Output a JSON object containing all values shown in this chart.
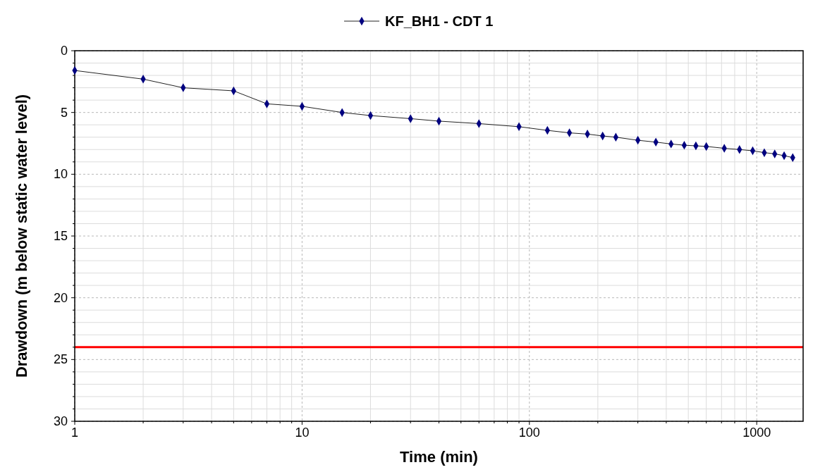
{
  "chart_data": {
    "type": "line",
    "xlabel": "Time (min)",
    "ylabel": "Drawdown (m below static water level)",
    "log": "x",
    "grid": true,
    "legend": "top",
    "marker": "diamond",
    "line_style": "solid",
    "xlim": [
      1,
      1600
    ],
    "xticks": [
      1,
      {
        "value": 2,
        "label": null
      },
      {
        "value": 3,
        "label": null
      },
      {
        "value": 4,
        "label": null
      },
      {
        "value": 5,
        "label": null
      },
      {
        "value": 6,
        "label": null
      },
      {
        "value": 7,
        "label": null
      },
      {
        "value": 8,
        "label": null
      },
      {
        "value": 9,
        "label": null
      },
      10,
      {
        "value": 20,
        "label": null
      },
      {
        "value": 30,
        "label": null
      },
      {
        "value": 40,
        "label": null
      },
      {
        "value": 50,
        "label": null
      },
      {
        "value": 60,
        "label": null
      },
      {
        "value": 70,
        "label": null
      },
      {
        "value": 80,
        "label": null
      },
      {
        "value": 90,
        "label": null
      },
      100,
      {
        "value": 200,
        "label": null
      },
      {
        "value": 300,
        "label": null
      },
      {
        "value": 400,
        "label": null
      },
      {
        "value": 500,
        "label": null
      },
      {
        "value": 600,
        "label": null
      },
      {
        "value": 700,
        "label": null
      },
      {
        "value": 800,
        "label": null
      },
      {
        "value": 900,
        "label": null
      },
      1000
    ],
    "ylim": [
      30,
      0
    ],
    "yticks": [
      0,
      {
        "value": 1,
        "label": null
      },
      {
        "value": 2,
        "label": null
      },
      {
        "value": 3,
        "label": null
      },
      {
        "value": 4,
        "label": null
      },
      5,
      {
        "value": 6,
        "label": null
      },
      {
        "value": 7,
        "label": null
      },
      {
        "value": 8,
        "label": null
      },
      {
        "value": 9,
        "label": null
      },
      10,
      {
        "value": 11,
        "label": null
      },
      {
        "value": 12,
        "label": null
      },
      {
        "value": 13,
        "label": null
      },
      {
        "value": 14,
        "label": null
      },
      15,
      {
        "value": 16,
        "label": null
      },
      {
        "value": 17,
        "label": null
      },
      {
        "value": 18,
        "label": null
      },
      {
        "value": 19,
        "label": null
      },
      20,
      {
        "value": 21,
        "label": null
      },
      {
        "value": 22,
        "label": null
      },
      {
        "value": 23,
        "label": null
      },
      {
        "value": 24,
        "label": null
      },
      25,
      {
        "value": 26,
        "label": null
      },
      {
        "value": 27,
        "label": null
      },
      {
        "value": 28,
        "label": null
      },
      {
        "value": 29,
        "label": null
      },
      30
    ],
    "x": [
      1,
      2,
      3,
      5,
      7,
      10,
      15,
      20,
      30,
      40,
      60,
      90,
      120,
      150,
      180,
      210,
      240,
      300,
      360,
      420,
      480,
      540,
      600,
      720,
      840,
      960,
      1080,
      1200,
      1320,
      1440
    ],
    "series": [
      {
        "name": "KF_BH1 - CDT 1",
        "color": "#000080",
        "values": [
          1.6,
          2.3,
          3.0,
          3.25,
          4.3,
          4.5,
          5.0,
          5.25,
          5.5,
          5.7,
          5.9,
          6.15,
          6.45,
          6.65,
          6.75,
          6.9,
          7.0,
          7.25,
          7.4,
          7.55,
          7.65,
          7.7,
          7.75,
          7.9,
          8.0,
          8.1,
          8.25,
          8.35,
          8.5,
          8.65
        ]
      }
    ],
    "ref_lines": [
      {
        "axis": "y",
        "value": 24,
        "color": "#ff0000",
        "line_style": "solid"
      }
    ]
  }
}
